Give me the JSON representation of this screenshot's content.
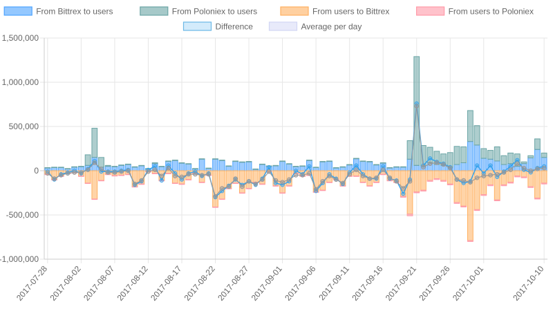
{
  "chart_data": {
    "type": "bar",
    "title": "",
    "xlabel": "",
    "ylabel": "",
    "ylim": [
      -1000000,
      1500000
    ],
    "y_ticks": [
      1500000,
      1000000,
      500000,
      0,
      -500000,
      -1000000
    ],
    "y_tick_labels": [
      "1,500,000",
      "1,000,000",
      "500,000",
      "0",
      "-500,000",
      "-1,000,000"
    ],
    "x_tick_labels": [
      "2017-07-28",
      "2017-08-02",
      "2017-08-07",
      "2017-08-12",
      "2017-08-17",
      "2017-08-22",
      "2017-08-27",
      "2017-09-01",
      "2017-09-06",
      "2017-09-11",
      "2017-09-16",
      "2017-09-21",
      "2017-09-26",
      "2017-10-01",
      "2017-10-10"
    ],
    "x_tick_indices": [
      0,
      5,
      10,
      15,
      20,
      25,
      30,
      35,
      40,
      45,
      50,
      55,
      60,
      65,
      74
    ],
    "grid": true,
    "legend_position": "top",
    "categories": [
      "2017-07-28",
      "2017-07-29",
      "2017-07-30",
      "2017-07-31",
      "2017-08-01",
      "2017-08-02",
      "2017-08-03",
      "2017-08-04",
      "2017-08-05",
      "2017-08-06",
      "2017-08-07",
      "2017-08-08",
      "2017-08-09",
      "2017-08-10",
      "2017-08-11",
      "2017-08-12",
      "2017-08-13",
      "2017-08-14",
      "2017-08-15",
      "2017-08-16",
      "2017-08-17",
      "2017-08-18",
      "2017-08-19",
      "2017-08-20",
      "2017-08-21",
      "2017-08-22",
      "2017-08-23",
      "2017-08-24",
      "2017-08-25",
      "2017-08-26",
      "2017-08-27",
      "2017-08-28",
      "2017-08-29",
      "2017-08-30",
      "2017-08-31",
      "2017-09-01",
      "2017-09-02",
      "2017-09-03",
      "2017-09-04",
      "2017-09-05",
      "2017-09-06",
      "2017-09-07",
      "2017-09-08",
      "2017-09-09",
      "2017-09-10",
      "2017-09-11",
      "2017-09-12",
      "2017-09-13",
      "2017-09-14",
      "2017-09-15",
      "2017-09-16",
      "2017-09-17",
      "2017-09-18",
      "2017-09-19",
      "2017-09-20",
      "2017-09-21",
      "2017-09-22",
      "2017-09-23",
      "2017-09-24",
      "2017-09-25",
      "2017-09-26",
      "2017-09-27",
      "2017-09-28",
      "2017-09-29",
      "2017-09-30",
      "2017-10-01",
      "2017-10-02",
      "2017-10-03",
      "2017-10-04",
      "2017-10-05",
      "2017-10-06",
      "2017-10-07",
      "2017-10-08",
      "2017-10-09",
      "2017-10-10"
    ],
    "series": [
      {
        "name": "From Bittrex to users",
        "kind": "bar",
        "stack": "in",
        "color": "#4da3ff",
        "values": [
          30000,
          35000,
          35000,
          20000,
          40000,
          45000,
          60000,
          150000,
          40000,
          50000,
          45000,
          60000,
          70000,
          40000,
          55000,
          20000,
          80000,
          45000,
          105000,
          115000,
          85000,
          75000,
          20000,
          130000,
          25000,
          130000,
          115000,
          50000,
          105000,
          95000,
          100000,
          15000,
          70000,
          50000,
          55000,
          105000,
          75000,
          45000,
          50000,
          115000,
          35000,
          100000,
          105000,
          30000,
          40000,
          65000,
          135000,
          105000,
          100000,
          65000,
          85000,
          30000,
          40000,
          40000,
          130000,
          60000,
          55000,
          90000,
          70000,
          60000,
          40000,
          70000,
          90000,
          330000,
          290000,
          140000,
          130000,
          110000,
          70000,
          80000,
          50000,
          80000,
          145000,
          240000,
          150000
        ]
      },
      {
        "name": "From Poloniex to users",
        "kind": "bar",
        "stack": "in",
        "color": "#6ba5a5",
        "values": [
          5000,
          5000,
          5000,
          5000,
          5000,
          5000,
          120000,
          330000,
          110000,
          10000,
          5000,
          5000,
          5000,
          5000,
          5000,
          5000,
          10000,
          5000,
          5000,
          5000,
          5000,
          5000,
          5000,
          5000,
          5000,
          5000,
          5000,
          5000,
          5000,
          5000,
          5000,
          5000,
          5000,
          5000,
          5000,
          5000,
          5000,
          5000,
          5000,
          5000,
          5000,
          5000,
          5000,
          5000,
          5000,
          5000,
          5000,
          5000,
          5000,
          5000,
          5000,
          5000,
          5000,
          5000,
          210000,
          1230000,
          230000,
          175000,
          150000,
          130000,
          165000,
          205000,
          180000,
          350000,
          220000,
          110000,
          100000,
          160000,
          100000,
          120000,
          140000,
          20000,
          25000,
          120000,
          50000
        ]
      },
      {
        "name": "From users to Bittrex",
        "kind": "bar",
        "stack": "out",
        "color": "#ffb060",
        "values": [
          -40000,
          -100000,
          -60000,
          -30000,
          -20000,
          -60000,
          -140000,
          -320000,
          -110000,
          -40000,
          -55000,
          -50000,
          -40000,
          -180000,
          -150000,
          -10000,
          -30000,
          -110000,
          -30000,
          -140000,
          -150000,
          -100000,
          -30000,
          -130000,
          -50000,
          -410000,
          -320000,
          -200000,
          -140000,
          -250000,
          -200000,
          -130000,
          -150000,
          -10000,
          -170000,
          -250000,
          -170000,
          -30000,
          -60000,
          -50000,
          -240000,
          -220000,
          -130000,
          -100000,
          -170000,
          -60000,
          -60000,
          -130000,
          -170000,
          -130000,
          -40000,
          -110000,
          -130000,
          -290000,
          -490000,
          -240000,
          -220000,
          -110000,
          -90000,
          -110000,
          -150000,
          -360000,
          -400000,
          -790000,
          -440000,
          -270000,
          -160000,
          -330000,
          -160000,
          -130000,
          -60000,
          -70000,
          -180000,
          -310000,
          -140000
        ]
      },
      {
        "name": "From users to Poloniex",
        "kind": "bar",
        "stack": "out",
        "color": "#ff9aa8",
        "values": [
          -5000,
          -5000,
          -5000,
          -5000,
          -5000,
          -5000,
          -5000,
          -5000,
          -5000,
          -5000,
          -5000,
          -5000,
          -5000,
          -5000,
          -5000,
          -5000,
          -5000,
          -5000,
          -5000,
          -5000,
          -5000,
          -5000,
          -5000,
          -5000,
          -5000,
          -5000,
          -5000,
          -5000,
          -5000,
          -5000,
          -5000,
          -5000,
          -5000,
          -5000,
          -5000,
          -5000,
          -5000,
          -5000,
          -5000,
          -5000,
          -5000,
          -5000,
          -5000,
          -5000,
          -5000,
          -5000,
          -5000,
          -5000,
          -5000,
          -5000,
          -5000,
          -5000,
          -5000,
          -10000,
          -20000,
          -10000,
          -10000,
          -10000,
          -10000,
          -10000,
          -10000,
          -10000,
          -10000,
          -10000,
          -10000,
          -10000,
          -10000,
          -10000,
          -10000,
          -10000,
          -10000,
          -10000,
          -10000,
          -10000,
          -10000
        ]
      },
      {
        "name": "Difference",
        "kind": "line",
        "color": "#36a2eb",
        "values": [
          -10000,
          -100000,
          -40000,
          -20000,
          0,
          -30000,
          20000,
          110000,
          -10000,
          -10000,
          -10000,
          0,
          10000,
          -160000,
          -120000,
          10000,
          50000,
          -110000,
          60000,
          -30000,
          -100000,
          -30000,
          -10000,
          -60000,
          -30000,
          -300000,
          -230000,
          -170000,
          -100000,
          -160000,
          -120000,
          -160000,
          -90000,
          40000,
          -140000,
          -160000,
          -120000,
          0,
          -40000,
          50000,
          -230000,
          -140000,
          -40000,
          -90000,
          -150000,
          -20000,
          60000,
          -40000,
          -90000,
          -90000,
          50000,
          -90000,
          -110000,
          -260000,
          -100000,
          760000,
          60000,
          140000,
          100000,
          80000,
          40000,
          -100000,
          -140000,
          -120000,
          60000,
          -30000,
          60000,
          -70000,
          -10000,
          50000,
          120000,
          10000,
          -20000,
          30000,
          50000
        ]
      },
      {
        "name": "Average per day",
        "kind": "line",
        "color": "#999999",
        "values": [
          -30000,
          -90000,
          -50000,
          -30000,
          -20000,
          -20000,
          10000,
          90000,
          20000,
          -20000,
          -20000,
          -10000,
          0,
          -150000,
          -110000,
          -10000,
          10000,
          -60000,
          30000,
          -60000,
          -70000,
          -40000,
          -40000,
          -50000,
          -40000,
          -290000,
          -200000,
          -180000,
          -90000,
          -180000,
          -120000,
          -150000,
          -100000,
          -10000,
          -110000,
          -130000,
          -100000,
          -50000,
          -50000,
          -30000,
          -210000,
          -120000,
          -60000,
          -100000,
          -140000,
          -40000,
          10000,
          -60000,
          -90000,
          -80000,
          10000,
          -80000,
          -120000,
          -200000,
          -120000,
          730000,
          40000,
          80000,
          90000,
          70000,
          30000,
          -100000,
          -110000,
          -130000,
          -80000,
          -60000,
          -50000,
          -40000,
          -20000,
          10000,
          80000,
          30000,
          0,
          20000,
          30000
        ]
      }
    ]
  }
}
